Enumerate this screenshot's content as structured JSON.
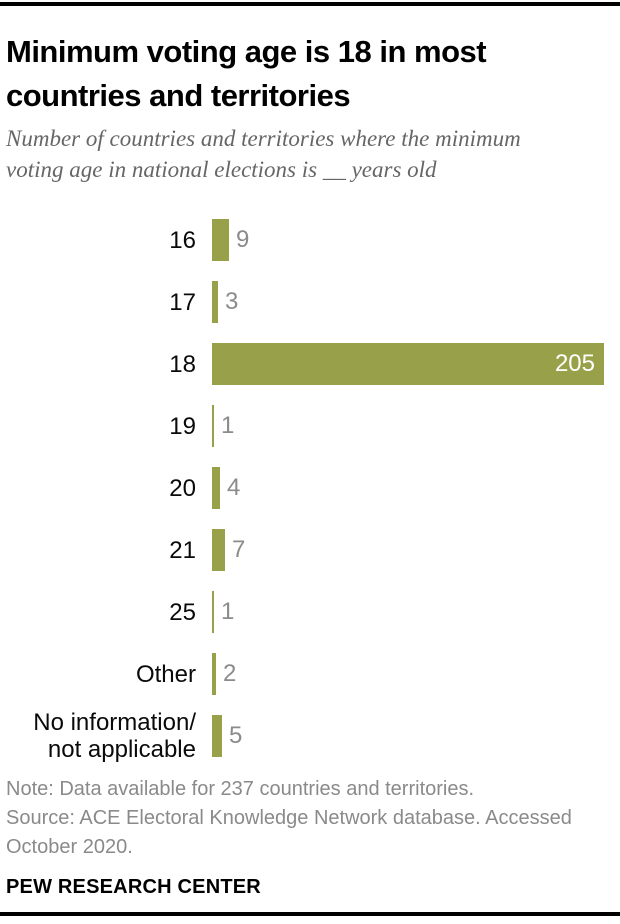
{
  "header": {
    "title": "Minimum voting age is 18 in most\ncountries and territories",
    "subtitle": "Number of countries and territories where the minimum\nvoting age in national elections is __ years old"
  },
  "chart_data": {
    "type": "bar",
    "orientation": "horizontal",
    "title": "Minimum voting age is 18 in most countries and territories",
    "description": "Number of countries and territories where the minimum voting age in national elections is __ years old",
    "categories": [
      "16",
      "17",
      "18",
      "19",
      "20",
      "21",
      "25",
      "Other",
      "No information/\nnot applicable"
    ],
    "values": [
      9,
      3,
      205,
      1,
      4,
      7,
      1,
      2,
      5
    ],
    "xlim": [
      0,
      205
    ],
    "grid": false,
    "legend": "none",
    "value_labels": "end-of-bar",
    "inside_label_index": 2,
    "bar_color": "#98a14a",
    "value_label_color": "#8b8b8b",
    "inside_value_label_color": "#ffffff"
  },
  "footer": {
    "note": "Note: Data available for 237 countries and territories.",
    "source": "Source: ACE Electoral Knowledge Network database. Accessed\nOctober 2020.",
    "brand": "PEW RESEARCH CENTER"
  }
}
